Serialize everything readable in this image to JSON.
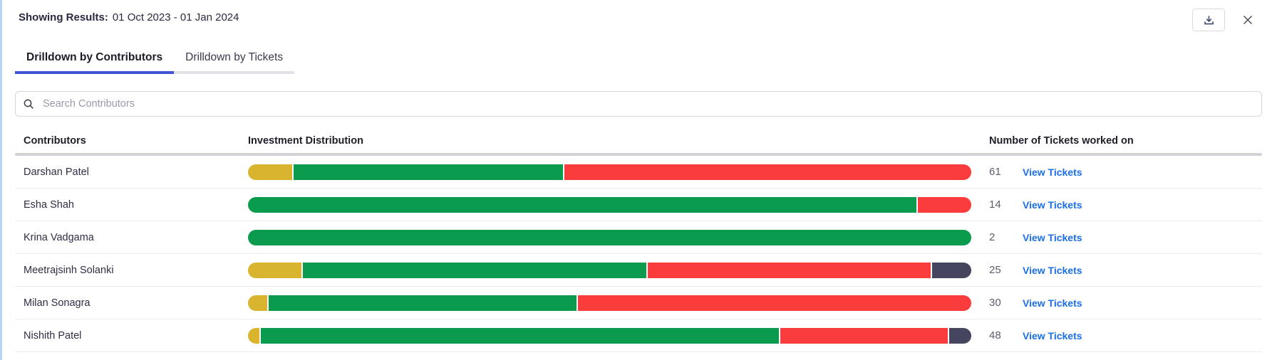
{
  "header": {
    "results_label": "Showing Results:",
    "results_range": "01 Oct 2023 - 01 Jan 2024"
  },
  "tabs": [
    {
      "label": "Drilldown by Contributors",
      "active": true
    },
    {
      "label": "Drilldown by Tickets",
      "active": false
    }
  ],
  "search": {
    "placeholder": "Search Contributors"
  },
  "table": {
    "columns": [
      "Contributors",
      "Investment Distribution",
      "Number of Tickets worked on"
    ],
    "link_label": "View Tickets",
    "rows": [
      {
        "name": "Darshan Patel",
        "tickets": "61",
        "segments": [
          {
            "color": "yellow",
            "pct": 6.1
          },
          {
            "color": "green",
            "pct": 37.4
          },
          {
            "color": "red",
            "pct": 56.5
          }
        ]
      },
      {
        "name": "Esha Shah",
        "tickets": "14",
        "segments": [
          {
            "color": "green",
            "pct": 92.6
          },
          {
            "color": "red",
            "pct": 7.4
          }
        ]
      },
      {
        "name": "Krina Vadgama",
        "tickets": "2",
        "segments": [
          {
            "color": "green",
            "pct": 100
          }
        ]
      },
      {
        "name": "Meetrajsinh Solanki",
        "tickets": "25",
        "segments": [
          {
            "color": "yellow",
            "pct": 7.4
          },
          {
            "color": "green",
            "pct": 47.8
          },
          {
            "color": "red",
            "pct": 39.3
          },
          {
            "color": "dark",
            "pct": 5.5
          }
        ]
      },
      {
        "name": "Milan Sonagra",
        "tickets": "30",
        "segments": [
          {
            "color": "yellow",
            "pct": 2.7
          },
          {
            "color": "green",
            "pct": 42.7
          },
          {
            "color": "red",
            "pct": 54.6
          }
        ]
      },
      {
        "name": "Nishith Patel",
        "tickets": "48",
        "segments": [
          {
            "color": "yellow",
            "pct": 1.6
          },
          {
            "color": "green",
            "pct": 72.0
          },
          {
            "color": "red",
            "pct": 23.3
          },
          {
            "color": "dark",
            "pct": 3.1
          }
        ]
      }
    ]
  },
  "colors": {
    "segments": {
      "yellow": "#d9b42e",
      "green": "#0a9b4e",
      "red": "#fb3c3c",
      "dark": "#45455f"
    },
    "active_tab_underline": "#4353d6",
    "link_blue": "#1a6ee8",
    "left_border": "#b7d5f2"
  },
  "chart_data": {
    "type": "bar",
    "orientation": "horizontal-stacked",
    "title": "Investment Distribution",
    "categories": [
      "Darshan Patel",
      "Esha Shah",
      "Krina Vadgama",
      "Meetrajsinh Solanki",
      "Milan Sonagra",
      "Nishith Patel"
    ],
    "series": [
      {
        "name": "yellow",
        "color": "#d9b42e",
        "values": [
          6.1,
          0,
          0,
          7.4,
          2.7,
          1.6
        ]
      },
      {
        "name": "green",
        "color": "#0a9b4e",
        "values": [
          37.4,
          92.6,
          100,
          47.8,
          42.7,
          72.0
        ]
      },
      {
        "name": "red",
        "color": "#fb3c3c",
        "values": [
          56.5,
          7.4,
          0,
          39.3,
          54.6,
          23.3
        ]
      },
      {
        "name": "dark",
        "color": "#45455f",
        "values": [
          0,
          0,
          0,
          5.5,
          0,
          3.1
        ]
      }
    ],
    "values_unit": "percent of each bar",
    "tickets_worked_on": [
      61,
      14,
      2,
      25,
      30,
      48
    ],
    "xlabel": "",
    "ylabel": "",
    "legend": false,
    "grid": false
  }
}
